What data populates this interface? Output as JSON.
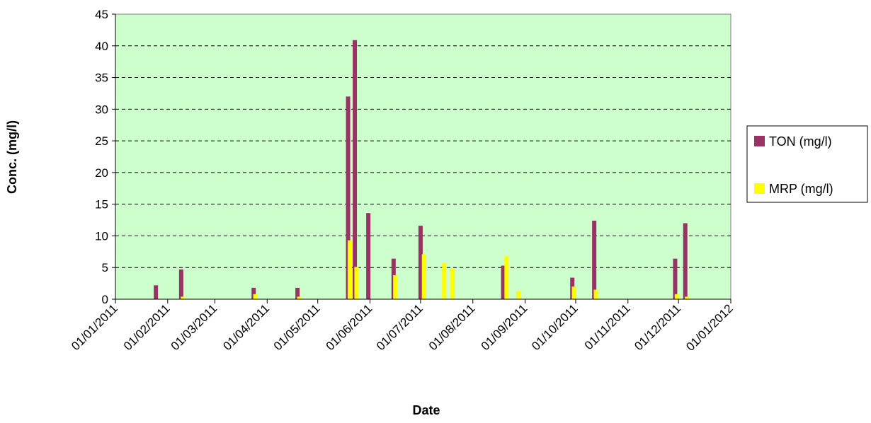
{
  "chart_data": {
    "type": "bar",
    "title": "",
    "xlabel": "Date",
    "ylabel": "Conc. (mg/l)",
    "x_axis": {
      "type": "date",
      "range": [
        "2011-01-01",
        "2012-01-01"
      ],
      "tick_labels": [
        "01/01/2011",
        "01/02/2011",
        "01/03/2011",
        "01/04/2011",
        "01/05/2011",
        "01/06/2011",
        "01/07/2011",
        "01/08/2011",
        "01/09/2011",
        "01/10/2011",
        "01/11/2011",
        "01/12/2011",
        "01/01/2012"
      ],
      "tick_dates": [
        "2011-01-01",
        "2011-02-01",
        "2011-03-01",
        "2011-04-01",
        "2011-05-01",
        "2011-06-01",
        "2011-07-01",
        "2011-08-01",
        "2011-09-01",
        "2011-10-01",
        "2011-11-01",
        "2011-12-01",
        "2012-01-01"
      ]
    },
    "y_axis": {
      "ylim": [
        0,
        45
      ],
      "ticks": [
        0,
        5,
        10,
        15,
        20,
        25,
        30,
        35,
        40,
        45
      ],
      "grid": true,
      "grid_style": "dashed"
    },
    "plot_background": "#ccffcc",
    "legend": {
      "position": "right"
    },
    "series": [
      {
        "name": "TON (mg/l)",
        "color": "#993366",
        "points": [
          {
            "date": "2011-01-25",
            "value": 2.2
          },
          {
            "date": "2011-02-09",
            "value": 4.7
          },
          {
            "date": "2011-03-24",
            "value": 1.8
          },
          {
            "date": "2011-04-19",
            "value": 1.8
          },
          {
            "date": "2011-05-19",
            "value": 32.0
          },
          {
            "date": "2011-05-23",
            "value": 40.9
          },
          {
            "date": "2011-05-31",
            "value": 13.6
          },
          {
            "date": "2011-06-15",
            "value": 6.4
          },
          {
            "date": "2011-07-01",
            "value": 11.6
          },
          {
            "date": "2011-08-19",
            "value": 5.3
          },
          {
            "date": "2011-09-29",
            "value": 3.4
          },
          {
            "date": "2011-10-12",
            "value": 12.4
          },
          {
            "date": "2011-11-29",
            "value": 6.4
          },
          {
            "date": "2011-12-05",
            "value": 12.0
          }
        ]
      },
      {
        "name": "MRP (mg/l)",
        "color": "#ffff00",
        "points": [
          {
            "date": "2011-02-10",
            "value": 0.4
          },
          {
            "date": "2011-03-25",
            "value": 0.8
          },
          {
            "date": "2011-04-20",
            "value": 0.4
          },
          {
            "date": "2011-05-20",
            "value": 9.3
          },
          {
            "date": "2011-05-24",
            "value": 5.1
          },
          {
            "date": "2011-06-16",
            "value": 3.8
          },
          {
            "date": "2011-07-03",
            "value": 7.1
          },
          {
            "date": "2011-07-15",
            "value": 5.7
          },
          {
            "date": "2011-07-20",
            "value": 4.9
          },
          {
            "date": "2011-08-21",
            "value": 6.8
          },
          {
            "date": "2011-08-28",
            "value": 1.3
          },
          {
            "date": "2011-09-30",
            "value": 2.0
          },
          {
            "date": "2011-10-13",
            "value": 1.5
          },
          {
            "date": "2011-11-30",
            "value": 0.8
          },
          {
            "date": "2011-12-06",
            "value": 0.4
          }
        ]
      }
    ]
  }
}
